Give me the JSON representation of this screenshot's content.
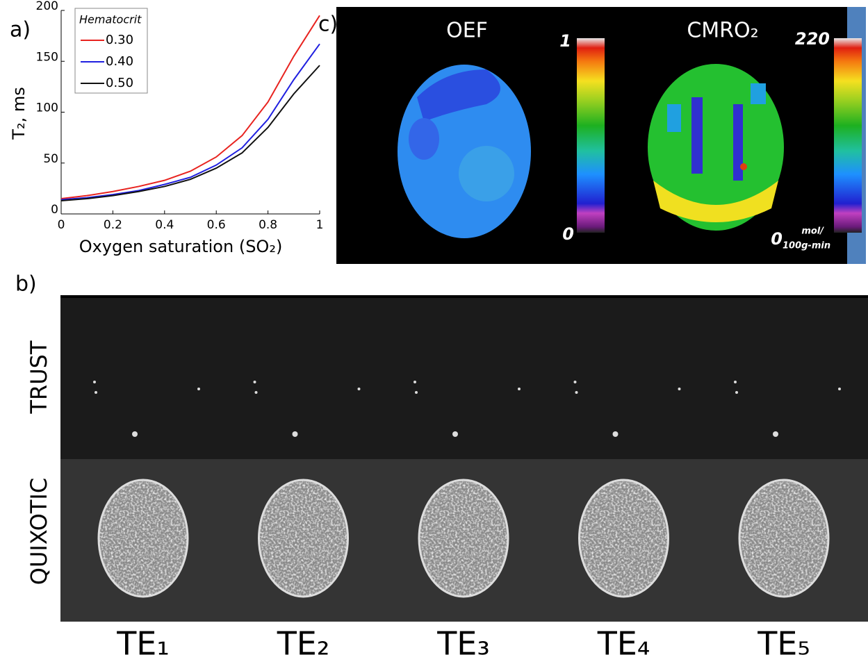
{
  "chart_data": {
    "type": "line",
    "x_label": "Oxygen saturation (SO₂)",
    "y_label": "T₂, ms",
    "legend_title": "Hematocrit",
    "legend": "upper left",
    "x": [
      0,
      0.1,
      0.2,
      0.3,
      0.4,
      0.5,
      0.6,
      0.7,
      0.8,
      0.9,
      1
    ],
    "series": [
      {
        "name": "0.30",
        "color": "#e8231f",
        "values": [
          15,
          18,
          22,
          27,
          33,
          42,
          56,
          77,
          110,
          155,
          195
        ]
      },
      {
        "name": "0.40",
        "color": "#1f1fe0",
        "values": [
          14,
          16,
          19,
          23,
          29,
          36,
          48,
          65,
          93,
          132,
          167
        ]
      },
      {
        "name": "0.50",
        "color": "#111111",
        "values": [
          13,
          15,
          18,
          22,
          27,
          34,
          45,
          60,
          85,
          118,
          146
        ]
      }
    ],
    "xlim": [
      0,
      1
    ],
    "xticks": [
      0,
      0.2,
      0.4,
      0.6,
      0.8,
      1
    ],
    "ylim": [
      0,
      200
    ],
    "yticks": [
      0,
      50,
      100,
      150,
      200
    ]
  },
  "panels": {
    "a": "a)",
    "b": "b)",
    "c": "c)"
  },
  "maps": {
    "oef": {
      "title": "OEF",
      "max": "1",
      "min": "0"
    },
    "cmro2": {
      "title": "CMRO₂",
      "max": "220",
      "min": "0",
      "unit_top": "mol/",
      "unit_bottom": "100g-min"
    }
  },
  "images": {
    "rows": [
      "TRUST",
      "QUIXOTIC"
    ],
    "columns": [
      "TE₁",
      "TE₂",
      "TE₃",
      "TE₄",
      "TE₅"
    ]
  }
}
